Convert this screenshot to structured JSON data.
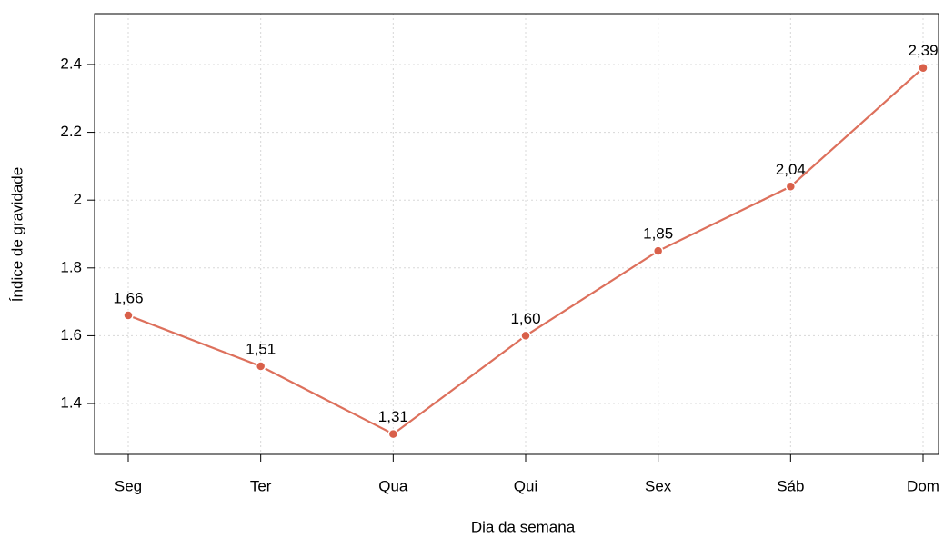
{
  "chart_data": {
    "type": "line",
    "xlabel": "Dia da semana",
    "ylabel": "Índice de gravidade",
    "categories": [
      "Seg",
      "Ter",
      "Qua",
      "Qui",
      "Sex",
      "Sáb",
      "Dom"
    ],
    "series": [
      {
        "color": "#d9604a",
        "values": [
          1.66,
          1.51,
          1.31,
          1.6,
          1.85,
          2.04,
          2.39
        ],
        "value_labels": [
          "1,66",
          "1,51",
          "1,31",
          "1,60",
          "1,85",
          "2,04",
          "2,39"
        ]
      }
    ],
    "ylim": [
      1.25,
      2.55
    ],
    "yticks": [
      1.4,
      1.6,
      1.8,
      2.0,
      2.2,
      2.4
    ],
    "grid": true
  }
}
